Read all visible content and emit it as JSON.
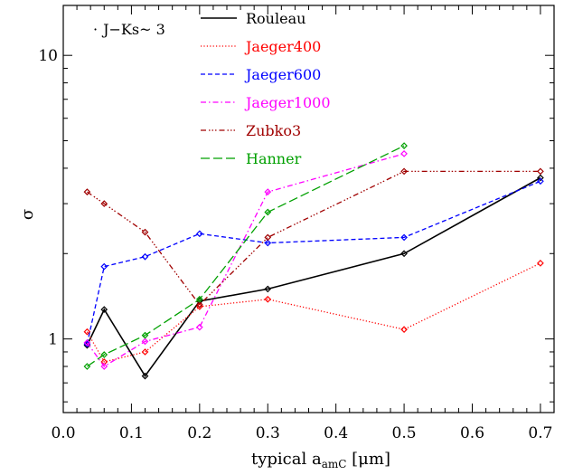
{
  "chart_data": {
    "type": "line",
    "title": "",
    "xlabel": "typical a",
    "xlabel_sub": "amC",
    "xlabel_unit": " [μm]",
    "ylabel": "σ",
    "annotation": "J−Ks~ 3",
    "xlim": [
      0.0,
      0.72
    ],
    "ylim": [
      0.55,
      15.0
    ],
    "yscale": "log",
    "x_ticks": [
      0.0,
      0.1,
      0.2,
      0.3,
      0.4,
      0.5,
      0.6,
      0.7
    ],
    "x_tick_labels": [
      "0.0",
      "0.1",
      "0.2",
      "0.3",
      "0.4",
      "0.5",
      "0.6",
      "0.7"
    ],
    "y_major_ticks": [
      1,
      10
    ],
    "y_tick_labels": [
      "1",
      "10"
    ],
    "legend_position": "top-center",
    "series": [
      {
        "name": "Rouleau",
        "color": "#000000",
        "dash": "solid",
        "x": [
          0.035,
          0.06,
          0.12,
          0.2,
          0.3,
          0.5,
          0.7
        ],
        "y": [
          0.95,
          1.27,
          0.74,
          1.36,
          1.5,
          2.0,
          3.7
        ]
      },
      {
        "name": "Jaeger400",
        "color": "#ff0000",
        "dash": "dotted",
        "x": [
          0.035,
          0.06,
          0.12,
          0.2,
          0.3,
          0.5,
          0.7
        ],
        "y": [
          1.06,
          0.83,
          0.9,
          1.3,
          1.38,
          1.08,
          1.85
        ]
      },
      {
        "name": "Jaeger600",
        "color": "#0000ff",
        "dash": "dashed",
        "x": [
          0.035,
          0.06,
          0.12,
          0.2,
          0.3,
          0.5,
          0.7
        ],
        "y": [
          0.96,
          1.8,
          1.95,
          2.35,
          2.18,
          2.28,
          3.6
        ]
      },
      {
        "name": "Jaeger1000",
        "color": "#ff00ff",
        "dash": "dashdot",
        "x": [
          0.035,
          0.06,
          0.12,
          0.2,
          0.3,
          0.5,
          0.7
        ],
        "y": [
          0.97,
          0.8,
          0.98,
          1.1,
          3.3,
          4.5,
          null
        ]
      },
      {
        "name": "Zubko3",
        "color": "#a00000",
        "dash": "dashdotdotdot",
        "x": [
          0.035,
          0.06,
          0.12,
          0.2,
          0.3,
          0.5,
          0.7
        ],
        "y": [
          3.3,
          3.0,
          2.38,
          1.32,
          2.28,
          3.9,
          3.9
        ]
      },
      {
        "name": "Hanner",
        "color": "#00a000",
        "dash": "longdash",
        "x": [
          0.035,
          0.06,
          0.12,
          0.2,
          0.3,
          0.5
        ],
        "y": [
          0.8,
          0.88,
          1.03,
          1.38,
          2.8,
          4.8
        ]
      }
    ]
  }
}
